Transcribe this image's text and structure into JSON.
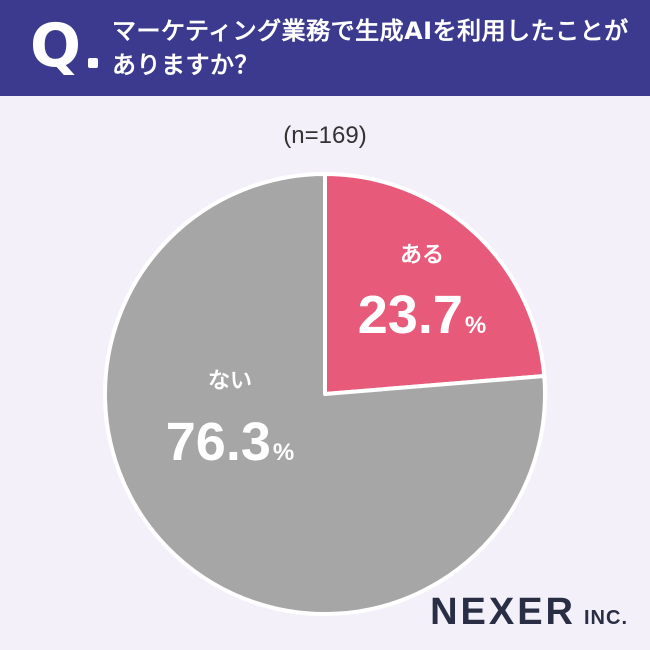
{
  "header": {
    "q_mark": "Q",
    "question": "マーケティング業務で生成AIを利用したことがありますか？"
  },
  "sample_label": "(n=169)",
  "logo": {
    "main": "NEXER",
    "sub": "INC."
  },
  "colors": {
    "header_bg": "#3c3a8e",
    "yes": "#e85a7a",
    "no": "#a6a6a6"
  },
  "chart_data": {
    "type": "pie",
    "title": "マーケティング業務で生成AIを利用したことがありますか？",
    "n": "(n=169)",
    "slices": [
      {
        "label": "ある",
        "value": 23.7,
        "value_text": "23.7",
        "unit": "%",
        "color": "#e85a7a"
      },
      {
        "label": "ない",
        "value": 76.3,
        "value_text": "76.3",
        "unit": "%",
        "color": "#a6a6a6"
      }
    ]
  }
}
